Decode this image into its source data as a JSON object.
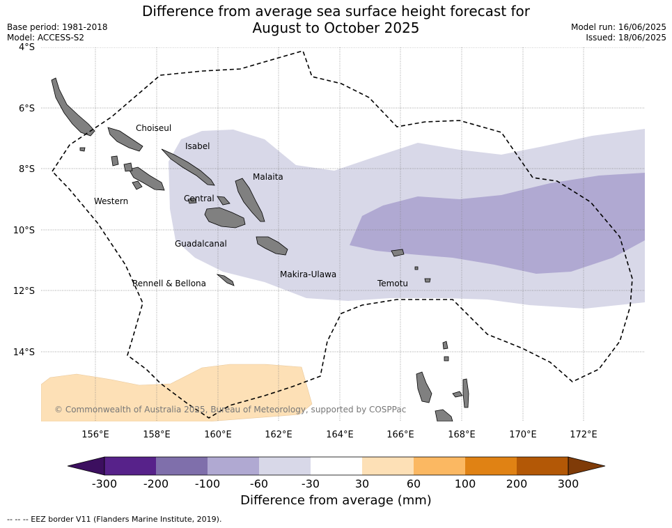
{
  "header": {
    "title_line1": "Difference from average sea surface height forecast for",
    "title_line2": "August to October 2025",
    "base_period": "Base period: 1981-2018",
    "model": "Model: ACCESS-S2",
    "model_run": "Model run: 16/06/2025",
    "issued": "Issued: 18/06/2025"
  },
  "map": {
    "lat_labels": [
      "4°S",
      "6°S",
      "8°S",
      "10°S",
      "12°S",
      "14°S"
    ],
    "lon_labels": [
      "156°E",
      "158°E",
      "160°E",
      "162°E",
      "164°E",
      "166°E",
      "168°E",
      "170°E",
      "172°E"
    ],
    "regions": [
      "Choiseul",
      "Isabel",
      "Malaita",
      "Western",
      "Central",
      "Guadalcanal",
      "Rennell & Bellona",
      "Makira-Ulawa",
      "Temotu"
    ],
    "copyright": "© Commonwealth of Australia 2025, Bureau of Meteorology, supported by COSPPac",
    "colors": {
      "land": "#808080",
      "anomaly_minus_60_to_minus_30": "#d8d8e8",
      "anomaly_minus_100_to_minus_60": "#b0a9d2",
      "anomaly_30_to_60": "#fde0b6"
    }
  },
  "colorbar": {
    "label": "Difference from average (mm)",
    "ticks": [
      "-300",
      "-200",
      "-100",
      "-60",
      "-30",
      "30",
      "60",
      "100",
      "200",
      "300"
    ],
    "colors": [
      "#3c0f5f",
      "#57228a",
      "#7f6fab",
      "#b0a9d2",
      "#d8d8e8",
      "#ffffff",
      "#fde0b6",
      "#fbb862",
      "#e08214",
      "#b35806",
      "#7f3b08"
    ]
  },
  "footnote": "--  --  -- EEZ border V11 (Flanders Marine Institute, 2019)."
}
